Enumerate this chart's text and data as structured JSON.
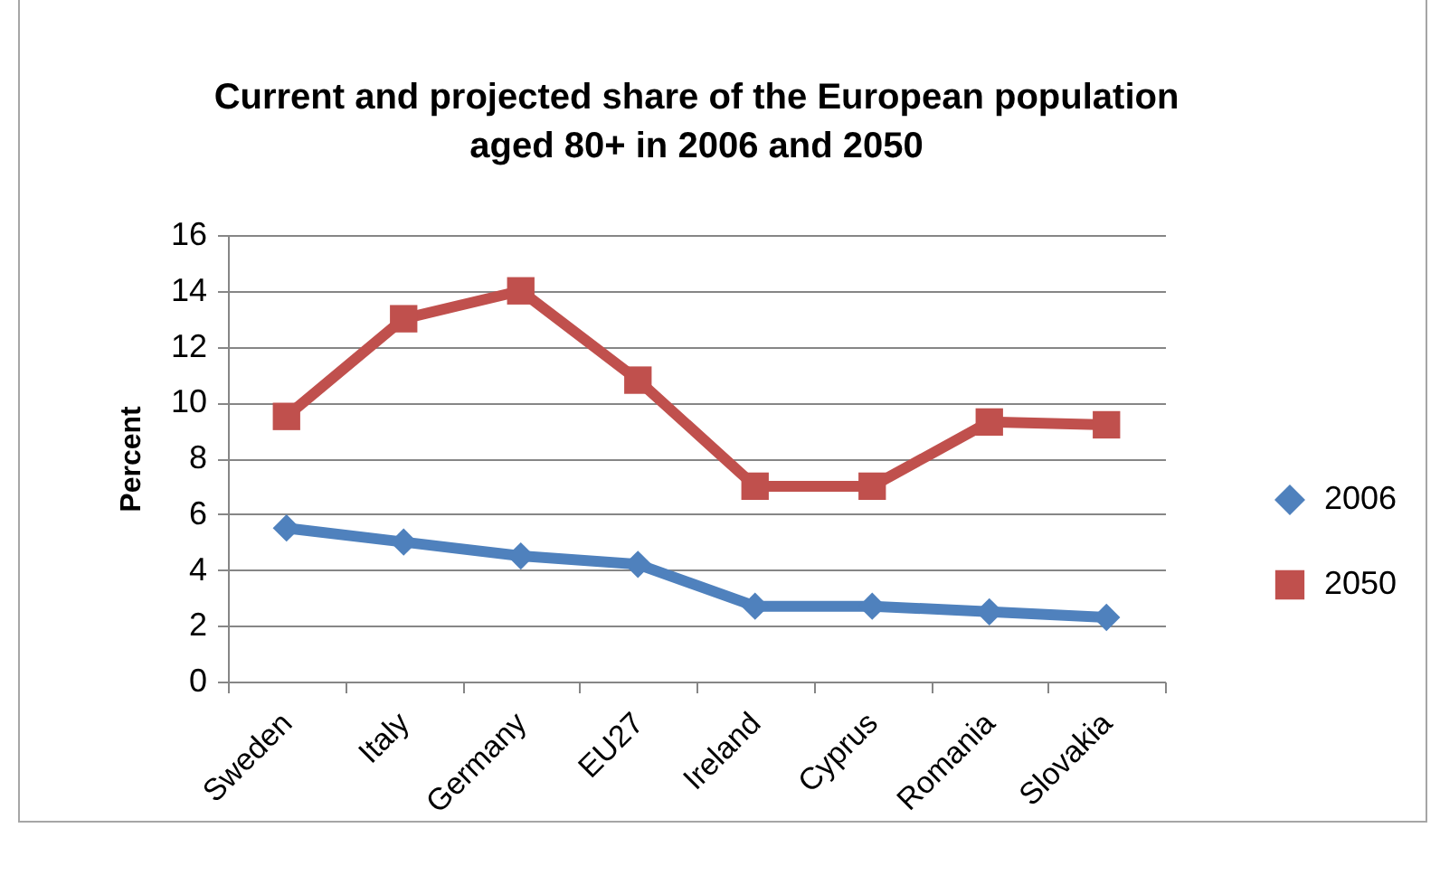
{
  "chart_data": {
    "type": "line",
    "title": "Current and projected share of the European population aged 80+ in 2006 and 2050",
    "ylabel": "Percent",
    "categories": [
      "Sweden",
      "Italy",
      "Germany",
      "EU27",
      "Ireland",
      "Cyprus",
      "Romania",
      "Slovakia"
    ],
    "series": [
      {
        "name": "2006",
        "color": "#4f81bd",
        "marker": "diamond",
        "values": [
          5.5,
          5.0,
          4.5,
          4.2,
          2.7,
          2.7,
          2.5,
          2.3
        ]
      },
      {
        "name": "2050",
        "color": "#c0504d",
        "marker": "square",
        "values": [
          9.5,
          13.0,
          14.0,
          10.8,
          7.0,
          7.0,
          9.3,
          9.2
        ]
      }
    ],
    "ylim": [
      0,
      16
    ],
    "yticks": [
      0,
      2,
      4,
      6,
      8,
      10,
      12,
      14,
      16
    ],
    "grid": "y",
    "legend": "right",
    "line_style": "solid"
  }
}
